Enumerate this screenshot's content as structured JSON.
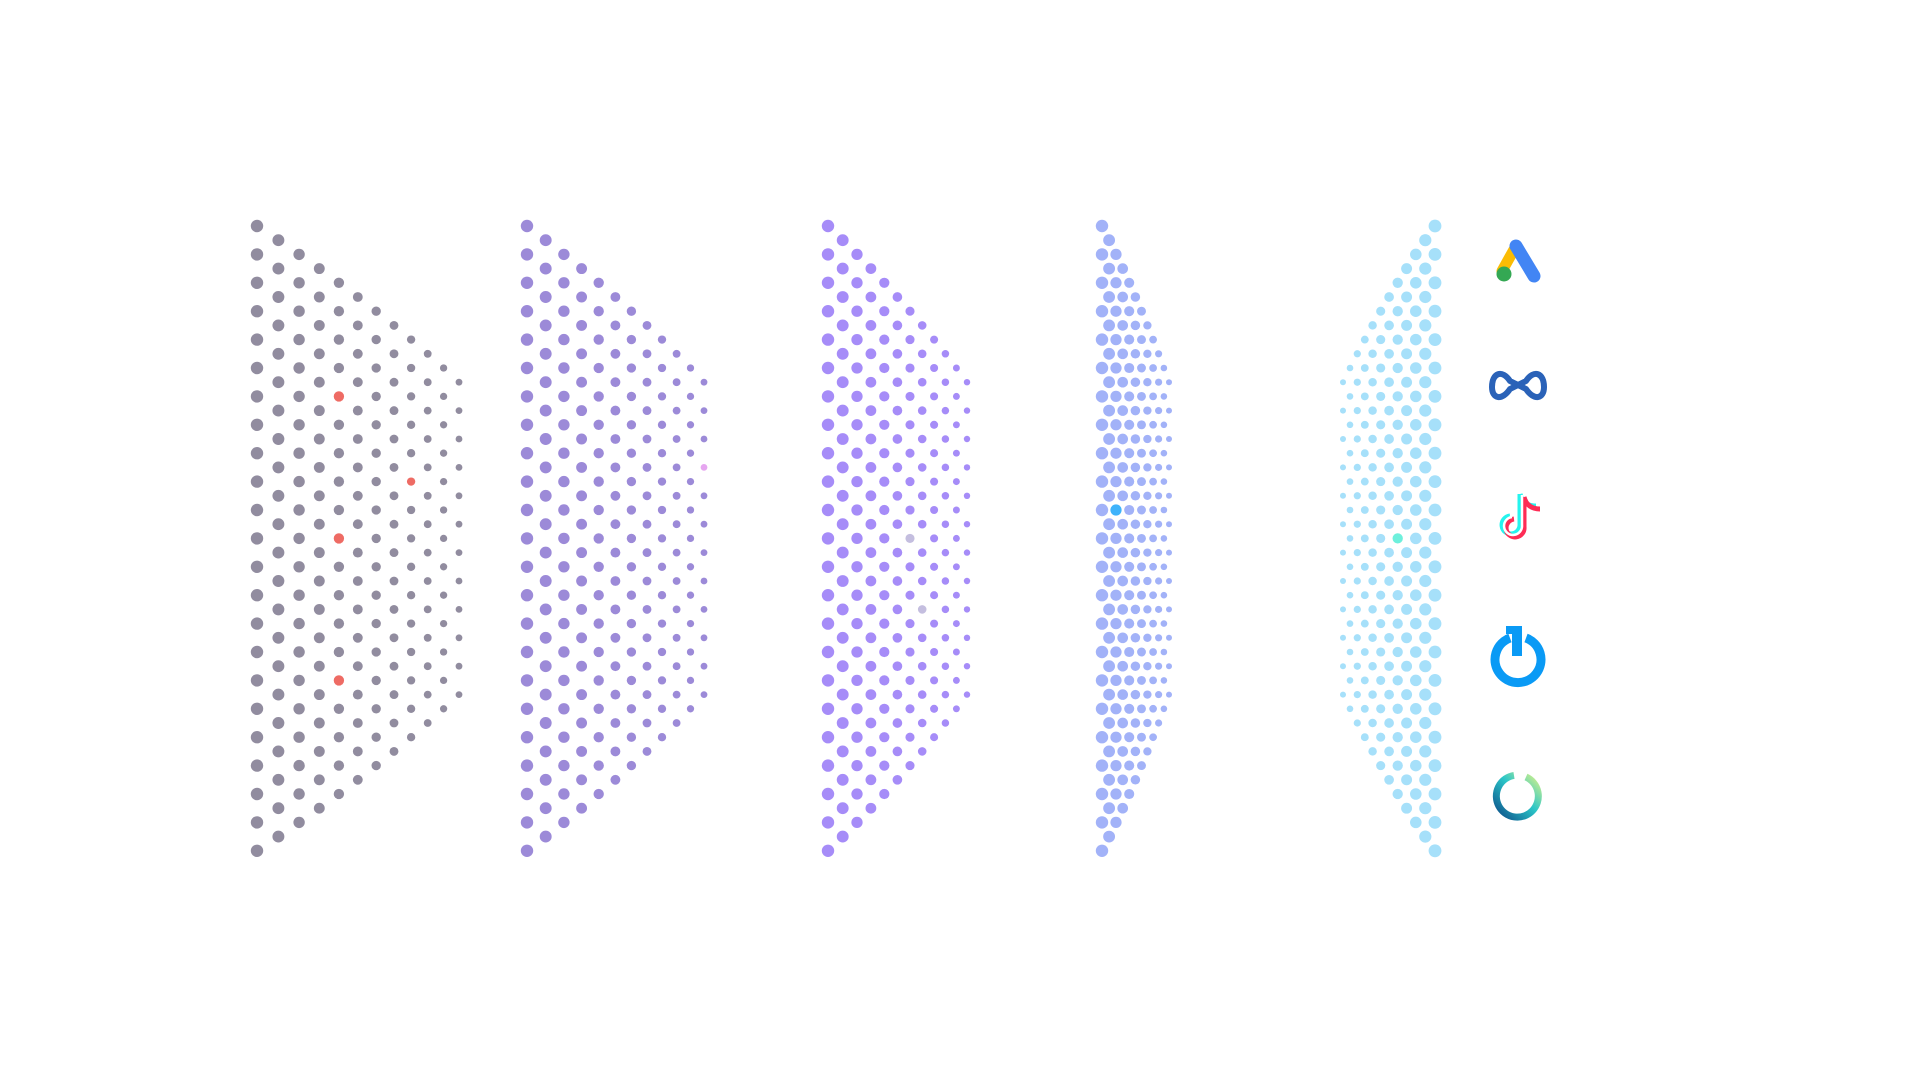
{
  "layers": [
    {
      "id": "layer-1",
      "color": "#918c9f",
      "highlight_color": "#ee6b64",
      "direction": "right"
    },
    {
      "id": "layer-2",
      "color": "#9c8ad8",
      "highlight_color": "#e6a6f0",
      "direction": "right"
    },
    {
      "id": "layer-3",
      "color": "#a68cf8",
      "highlight_color": "#c4bedf",
      "direction": "right"
    },
    {
      "id": "layer-4",
      "color": "#a2b2f8",
      "highlight_color": "#3fb3fb",
      "direction": "right"
    },
    {
      "id": "layer-5",
      "color": "#a6e0fa",
      "highlight_color": "#6ef0dc",
      "direction": "left"
    }
  ],
  "logos": [
    {
      "icon": "google-ads-icon",
      "colors": [
        "#fbbc04",
        "#4285f4",
        "#34a853"
      ]
    },
    {
      "icon": "meta-icon",
      "colors": [
        "#2a62b8"
      ]
    },
    {
      "icon": "tiktok-icon",
      "colors": [
        "#25f4ee",
        "#fe2c55",
        "#ffffff"
      ]
    },
    {
      "icon": "power-icon",
      "colors": [
        "#0a9af5"
      ]
    },
    {
      "icon": "ring-logo-icon",
      "colors": [
        "#0c4f8a",
        "#2bc6c8",
        "#d6f28a"
      ]
    }
  ]
}
